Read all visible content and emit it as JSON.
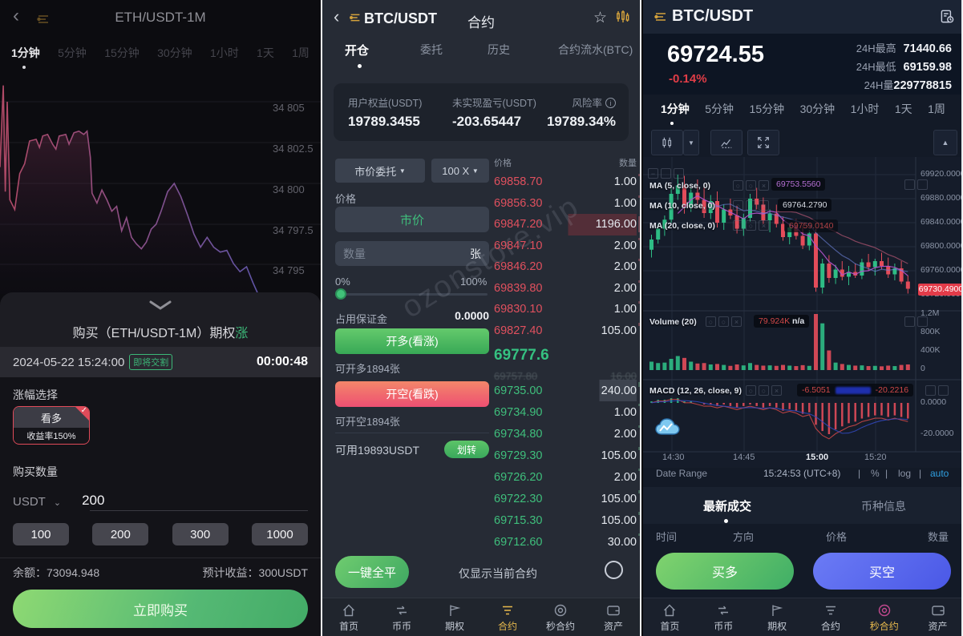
{
  "left": {
    "title": "ETH/USDT-1M",
    "timeframes": [
      "1分钟",
      "5分钟",
      "15分钟",
      "30分钟",
      "1小时",
      "1天",
      "1周"
    ],
    "chart": {
      "type": "area",
      "y_labels": [
        "34 805",
        "34 802.5",
        "34 800",
        "34 797.5",
        "34 795"
      ],
      "ylim": [
        34792,
        34806.5
      ],
      "points": [
        [
          0,
          34801
        ],
        [
          1,
          34806
        ],
        [
          1.6,
          34799.5
        ],
        [
          2.2,
          34805
        ],
        [
          3,
          34799
        ],
        [
          4.5,
          34798.4
        ],
        [
          6,
          34800.6
        ],
        [
          7.5,
          34801.2
        ],
        [
          9,
          34802.6
        ],
        [
          11,
          34802.7
        ],
        [
          12,
          34802.2
        ],
        [
          13,
          34802.9
        ],
        [
          14.5,
          34803
        ],
        [
          16,
          34802.4
        ],
        [
          17,
          34802.1
        ],
        [
          18,
          34802.9
        ],
        [
          20,
          34803
        ],
        [
          21,
          34802.4
        ],
        [
          22.5,
          34803.1
        ],
        [
          24,
          34803.2
        ],
        [
          25.5,
          34803
        ],
        [
          26.5,
          34803.2
        ],
        [
          27.5,
          34801.6
        ],
        [
          28,
          34799.4
        ],
        [
          29.5,
          34798.8
        ],
        [
          31,
          34799.6
        ],
        [
          32.5,
          34799
        ],
        [
          34,
          34798.3
        ],
        [
          35.5,
          34798.6
        ],
        [
          37,
          34797.1
        ],
        [
          38.5,
          34797.9
        ],
        [
          40,
          34796.7
        ],
        [
          41.5,
          34796.3
        ],
        [
          43,
          34796
        ],
        [
          44.5,
          34796.4
        ],
        [
          46,
          34797.2
        ],
        [
          47.5,
          34797.5
        ],
        [
          49,
          34798.3
        ],
        [
          51,
          34799.5
        ],
        [
          53,
          34800
        ],
        [
          55,
          34799.2
        ],
        [
          57,
          34798.1
        ],
        [
          59,
          34796.9
        ],
        [
          61,
          34796.1
        ],
        [
          63,
          34796.7
        ],
        [
          65,
          34796.1
        ],
        [
          67,
          34795.8
        ],
        [
          69,
          34795.9
        ],
        [
          71,
          34795.1
        ],
        [
          73,
          34794.6
        ],
        [
          75,
          34794.9
        ],
        [
          77,
          34793.9
        ],
        [
          79,
          34793
        ],
        [
          81,
          34792.2
        ]
      ]
    },
    "buy_prefix": "购买（ETH/USDT-1M）期权",
    "buy_direction": "涨",
    "datetime": "2024-05-22 15:24:00",
    "badge": "即将交割",
    "countdown": "00:00:48",
    "range_label": "涨幅选择",
    "option_card": {
      "direction": "看多",
      "yield": "收益率150%",
      "check": "✓"
    },
    "amount_label": "购买数量",
    "currency": "USDT",
    "caret": "⌄",
    "amount_value": "200",
    "quick_amounts": [
      "100",
      "200",
      "300",
      "1000"
    ],
    "balance_label": "余额：",
    "balance": "73094.948",
    "profit_label": "预计收益：",
    "profit": "300USDT",
    "buy_button": "立即购买"
  },
  "middle": {
    "symbol": "BTC/USDT",
    "title": "合约",
    "tabs": [
      "开仓",
      "委托",
      "历史",
      "合约流水(BTC)"
    ],
    "account": {
      "labels": [
        "用户权益(USDT)",
        "未实现盈亏(USDT)",
        "风险率"
      ],
      "values": [
        "19789.3455",
        "-203.65447",
        "19789.34%"
      ],
      "info_icon": "i"
    },
    "form": {
      "order_type": "市价委托",
      "leverage": "100 X",
      "dropdown_caret": "▼",
      "price_label": "价格",
      "market": "市价",
      "qty_placeholder": "数量",
      "unit": "张",
      "pct_left": "0%",
      "pct_right": "100%",
      "margin_label": "占用保证金",
      "margin_value": "0.0000",
      "long_button": "开多(看涨)",
      "long_avail": "可开多1894张",
      "short_button": "开空(看跌)",
      "short_avail": "可开空1894张",
      "available": "可用19893USDT",
      "transfer": "划转"
    },
    "orderbook": {
      "headers": [
        "价格",
        "数量"
      ],
      "asks": [
        [
          "69858.70",
          "1.00"
        ],
        [
          "69856.30",
          "1.00"
        ],
        [
          "69847.20",
          "1196.00"
        ],
        [
          "69847.10",
          "2.00"
        ],
        [
          "69846.20",
          "2.00"
        ],
        [
          "69839.80",
          "2.00"
        ],
        [
          "69830.10",
          "1.00"
        ],
        [
          "69827.40",
          "105.00"
        ]
      ],
      "current_price": "69777.6",
      "clipped_row": [
        "69757.80",
        "16.00"
      ],
      "bids": [
        [
          "69735.00",
          "240.00"
        ],
        [
          "69734.90",
          "1.00"
        ],
        [
          "69734.80",
          "2.00"
        ],
        [
          "69729.30",
          "105.00"
        ],
        [
          "69726.20",
          "2.00"
        ],
        [
          "69722.30",
          "105.00"
        ],
        [
          "69715.30",
          "105.00"
        ],
        [
          "69712.60",
          "30.00"
        ]
      ]
    },
    "close_all": "一键全平",
    "only_current": "仅显示当前合约",
    "watermark": "ozonstore.vip",
    "nav": [
      {
        "label": "首页",
        "icon": "home",
        "active": false
      },
      {
        "label": "币币",
        "icon": "coins",
        "active": false
      },
      {
        "label": "期权",
        "icon": "options",
        "active": false
      },
      {
        "label": "合约",
        "icon": "contract",
        "active": true
      },
      {
        "label": "秒合约",
        "icon": "seconds",
        "active": false
      },
      {
        "label": "资产",
        "icon": "assets",
        "active": false
      }
    ]
  },
  "right": {
    "symbol": "BTC/USDT",
    "price": "69724.55",
    "change": "-0.14%",
    "stats": [
      {
        "label": "24H最高",
        "value": "71440.66"
      },
      {
        "label": "24H最低",
        "value": "69159.98"
      },
      {
        "label": "24H量",
        "value": "229778815"
      }
    ],
    "timeframes": [
      "1分钟",
      "5分钟",
      "15分钟",
      "30分钟",
      "1小时",
      "1天",
      "1周"
    ],
    "chart_data": {
      "type": "candlestick",
      "y_labels": [
        "69920.0000",
        "69880.0000",
        "69840.0000",
        "69800.0000",
        "69760.0000",
        "69720.0000"
      ],
      "ylim": [
        69700,
        69925
      ],
      "price_tag": "69730.4900",
      "ma5_label": "MA (5, close, 0)",
      "ma5_value": "69753.5560",
      "ma10_label": "MA (10, close, 0)",
      "ma10_value": "69764.2790",
      "ma20_label": "MA (20, close, 0)",
      "ma20_value": "69759.0140",
      "volume_label": "Volume (20)",
      "volume_value": "79.924K",
      "volume_na": "n/a",
      "vol_y_labels": [
        "1.2M",
        "800K",
        "400K",
        "0"
      ],
      "macd_label": "MACD (12, 26, close, 9)",
      "macd_v1": "-6.5051",
      "macd_v2": "-20.2216",
      "macd_y_labels": [
        "0.0000",
        "-20.0000"
      ],
      "x_labels": [
        "14:30",
        "14:45",
        "15:00",
        "15:20"
      ],
      "candles": [
        [
          69795,
          69820,
          69782,
          69812
        ],
        [
          69812,
          69838,
          69805,
          69830
        ],
        [
          69830,
          69852,
          69818,
          69845
        ],
        [
          69845,
          69900,
          69840,
          69888
        ],
        [
          69888,
          69920,
          69878,
          69902
        ],
        [
          69902,
          69918,
          69855,
          69866
        ],
        [
          69866,
          69898,
          69858,
          69890
        ],
        [
          69890,
          69912,
          69870,
          69878
        ],
        [
          69878,
          69902,
          69848,
          69856
        ],
        [
          69856,
          69886,
          69846,
          69876
        ],
        [
          69876,
          69892,
          69832,
          69840
        ],
        [
          69840,
          69870,
          69828,
          69862
        ],
        [
          69862,
          69880,
          69846,
          69852
        ],
        [
          69852,
          69868,
          69822,
          69830
        ],
        [
          69830,
          69855,
          69818,
          69848
        ],
        [
          69848,
          69888,
          69842,
          69880
        ],
        [
          69880,
          69898,
          69862,
          69870
        ],
        [
          69870,
          69882,
          69838,
          69844
        ],
        [
          69844,
          69862,
          69824,
          69855
        ],
        [
          69855,
          69870,
          69832,
          69838
        ],
        [
          69838,
          69850,
          69810,
          69816
        ],
        [
          69816,
          69840,
          69804,
          69832
        ],
        [
          69832,
          69846,
          69812,
          69818
        ],
        [
          69818,
          69836,
          69796,
          69802
        ],
        [
          69802,
          69828,
          69794,
          69822
        ],
        [
          69822,
          69830,
          69725,
          69732
        ],
        [
          69732,
          69780,
          69722,
          69772
        ],
        [
          69772,
          69786,
          69740,
          69748
        ],
        [
          69748,
          69770,
          69738,
          69762
        ],
        [
          69762,
          69776,
          69744,
          69750
        ],
        [
          69750,
          69768,
          69736,
          69758
        ],
        [
          69758,
          69772,
          69748,
          69752
        ],
        [
          69752,
          69780,
          69746,
          69774
        ],
        [
          69774,
          69788,
          69760,
          69766
        ],
        [
          69766,
          69780,
          69752,
          69776
        ],
        [
          69776,
          69790,
          69762,
          69768
        ],
        [
          69768,
          69782,
          69748,
          69754
        ],
        [
          69754,
          69772,
          69744,
          69764
        ],
        [
          69764,
          69776,
          69738,
          69742
        ],
        [
          69742,
          69752,
          69722,
          69730
        ]
      ],
      "volumes": [
        180,
        150,
        160,
        240,
        300,
        260,
        180,
        140,
        150,
        120,
        130,
        110,
        90,
        120,
        100,
        150,
        110,
        95,
        100,
        90,
        110,
        95,
        85,
        105,
        90,
        1200,
        1000,
        420,
        160,
        130,
        110,
        95,
        100,
        85,
        90,
        80,
        95,
        85,
        110,
        120
      ],
      "macd_hist": [
        1,
        2,
        2,
        3,
        3,
        1,
        1,
        0,
        -1,
        -1,
        -2,
        -1,
        -2,
        -3,
        -2,
        -1,
        -2,
        -3,
        -2,
        -3,
        -5,
        -4,
        -5,
        -7,
        -6,
        -14,
        -18,
        -20,
        -17,
        -15,
        -13,
        -12,
        -10,
        -9,
        -8,
        -8,
        -9,
        -8,
        -9,
        -10
      ]
    },
    "bottom_bar": {
      "range": "Date Range",
      "time": "15:24:53 (UTC+8)",
      "sep": "|",
      "pct": "%",
      "log": "log",
      "auto": "auto"
    },
    "trade_tabs": [
      "最新成交",
      "币种信息"
    ],
    "table_headers": [
      "时间",
      "方向",
      "价格",
      "数量"
    ],
    "buy_long": "买多",
    "buy_short": "买空",
    "nav": [
      {
        "label": "首页",
        "icon": "home",
        "active": false
      },
      {
        "label": "币币",
        "icon": "coins",
        "active": false
      },
      {
        "label": "期权",
        "icon": "options",
        "active": false
      },
      {
        "label": "合约",
        "icon": "contract",
        "active": false
      },
      {
        "label": "秒合约",
        "icon": "seconds",
        "active": true
      },
      {
        "label": "资产",
        "icon": "assets",
        "active": false
      }
    ]
  }
}
